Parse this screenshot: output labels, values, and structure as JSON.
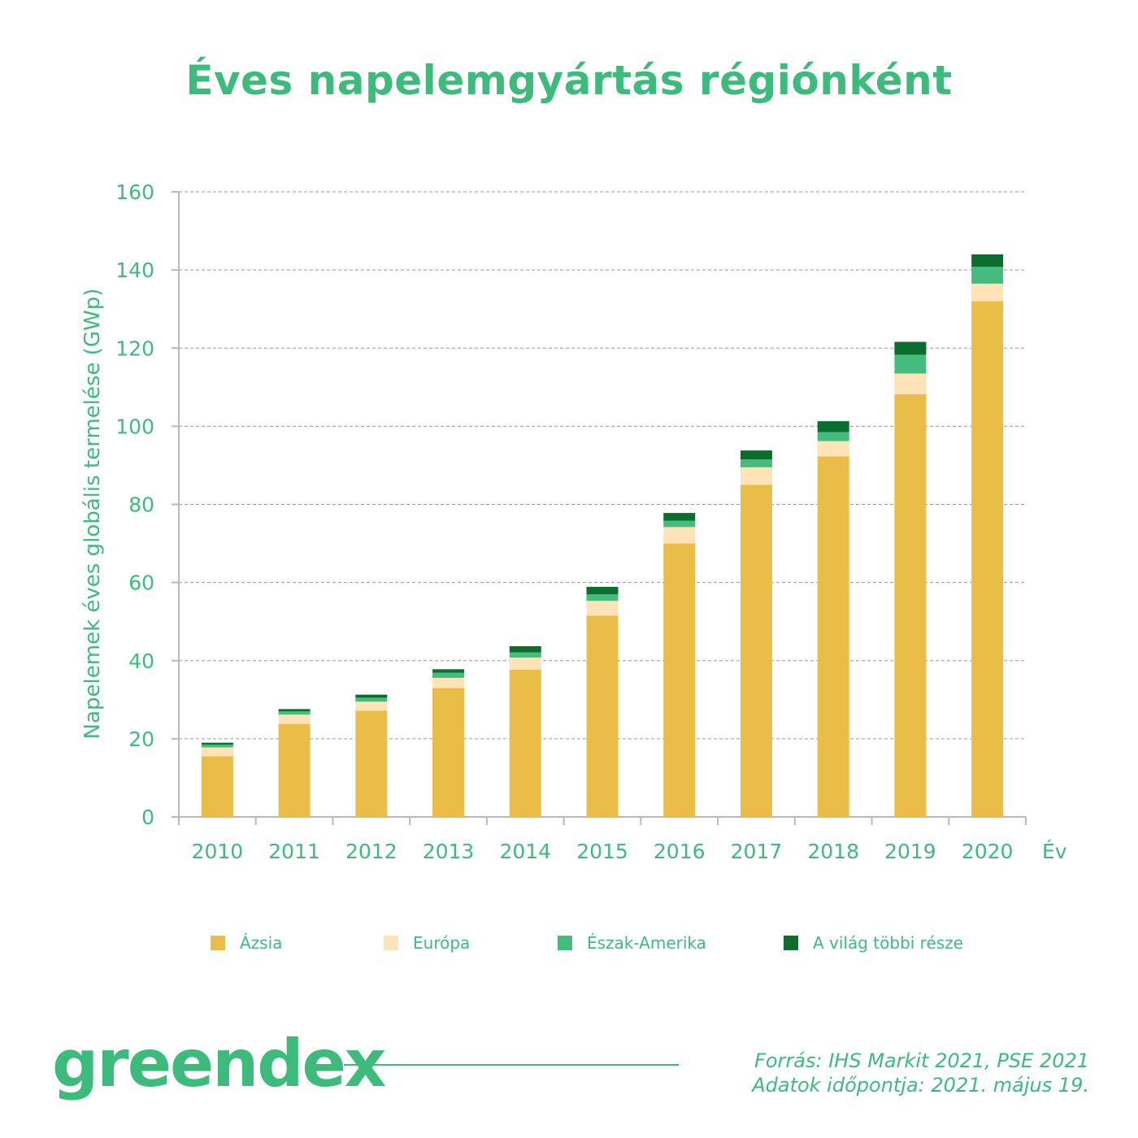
{
  "title": "Éves napelemgyártás régiónként",
  "chart_data": {
    "type": "bar",
    "stacked": true,
    "categories": [
      "2010",
      "2011",
      "2012",
      "2013",
      "2014",
      "2015",
      "2016",
      "2017",
      "2018",
      "2019",
      "2020"
    ],
    "series": [
      {
        "name": "Ázsia",
        "color": "#e9bd47",
        "values": [
          15.5,
          23.8,
          27.2,
          33,
          37.7,
          51.5,
          70,
          85,
          92.3,
          108.2,
          132
        ]
      },
      {
        "name": "Európa",
        "color": "#fde3b7",
        "values": [
          2.3,
          2.4,
          2.3,
          2.6,
          3.1,
          3.8,
          4.2,
          4.5,
          3.9,
          5.3,
          4.5
        ]
      },
      {
        "name": "Észak-Amerika",
        "color": "#45bb7d",
        "values": [
          0.7,
          0.8,
          1.0,
          1.3,
          1.3,
          1.7,
          1.6,
          2.0,
          2.3,
          4.8,
          4.3
        ]
      },
      {
        "name": "A világ többi része",
        "color": "#0b6e2f",
        "values": [
          0.5,
          0.6,
          0.8,
          0.9,
          1.6,
          1.9,
          2.0,
          2.3,
          2.8,
          3.3,
          3.2
        ]
      }
    ],
    "xlabel": "Év",
    "ylabel": "Napelemek éves globális termelése (GWp)",
    "ylim": [
      0,
      160
    ],
    "yticks": [
      0,
      20,
      40,
      60,
      80,
      100,
      120,
      140,
      160
    ],
    "grid": true,
    "legend": "bottom"
  },
  "brand": {
    "name": "greendex"
  },
  "source": {
    "line1": "Forrás: IHS Markit 2021, PSE 2021",
    "line2": "Adatok időpontja: 2021. május 19."
  },
  "colors": {
    "accent": "#3dbb7c",
    "axis": "#b9b9b9",
    "grid": "#9a9a9a"
  }
}
